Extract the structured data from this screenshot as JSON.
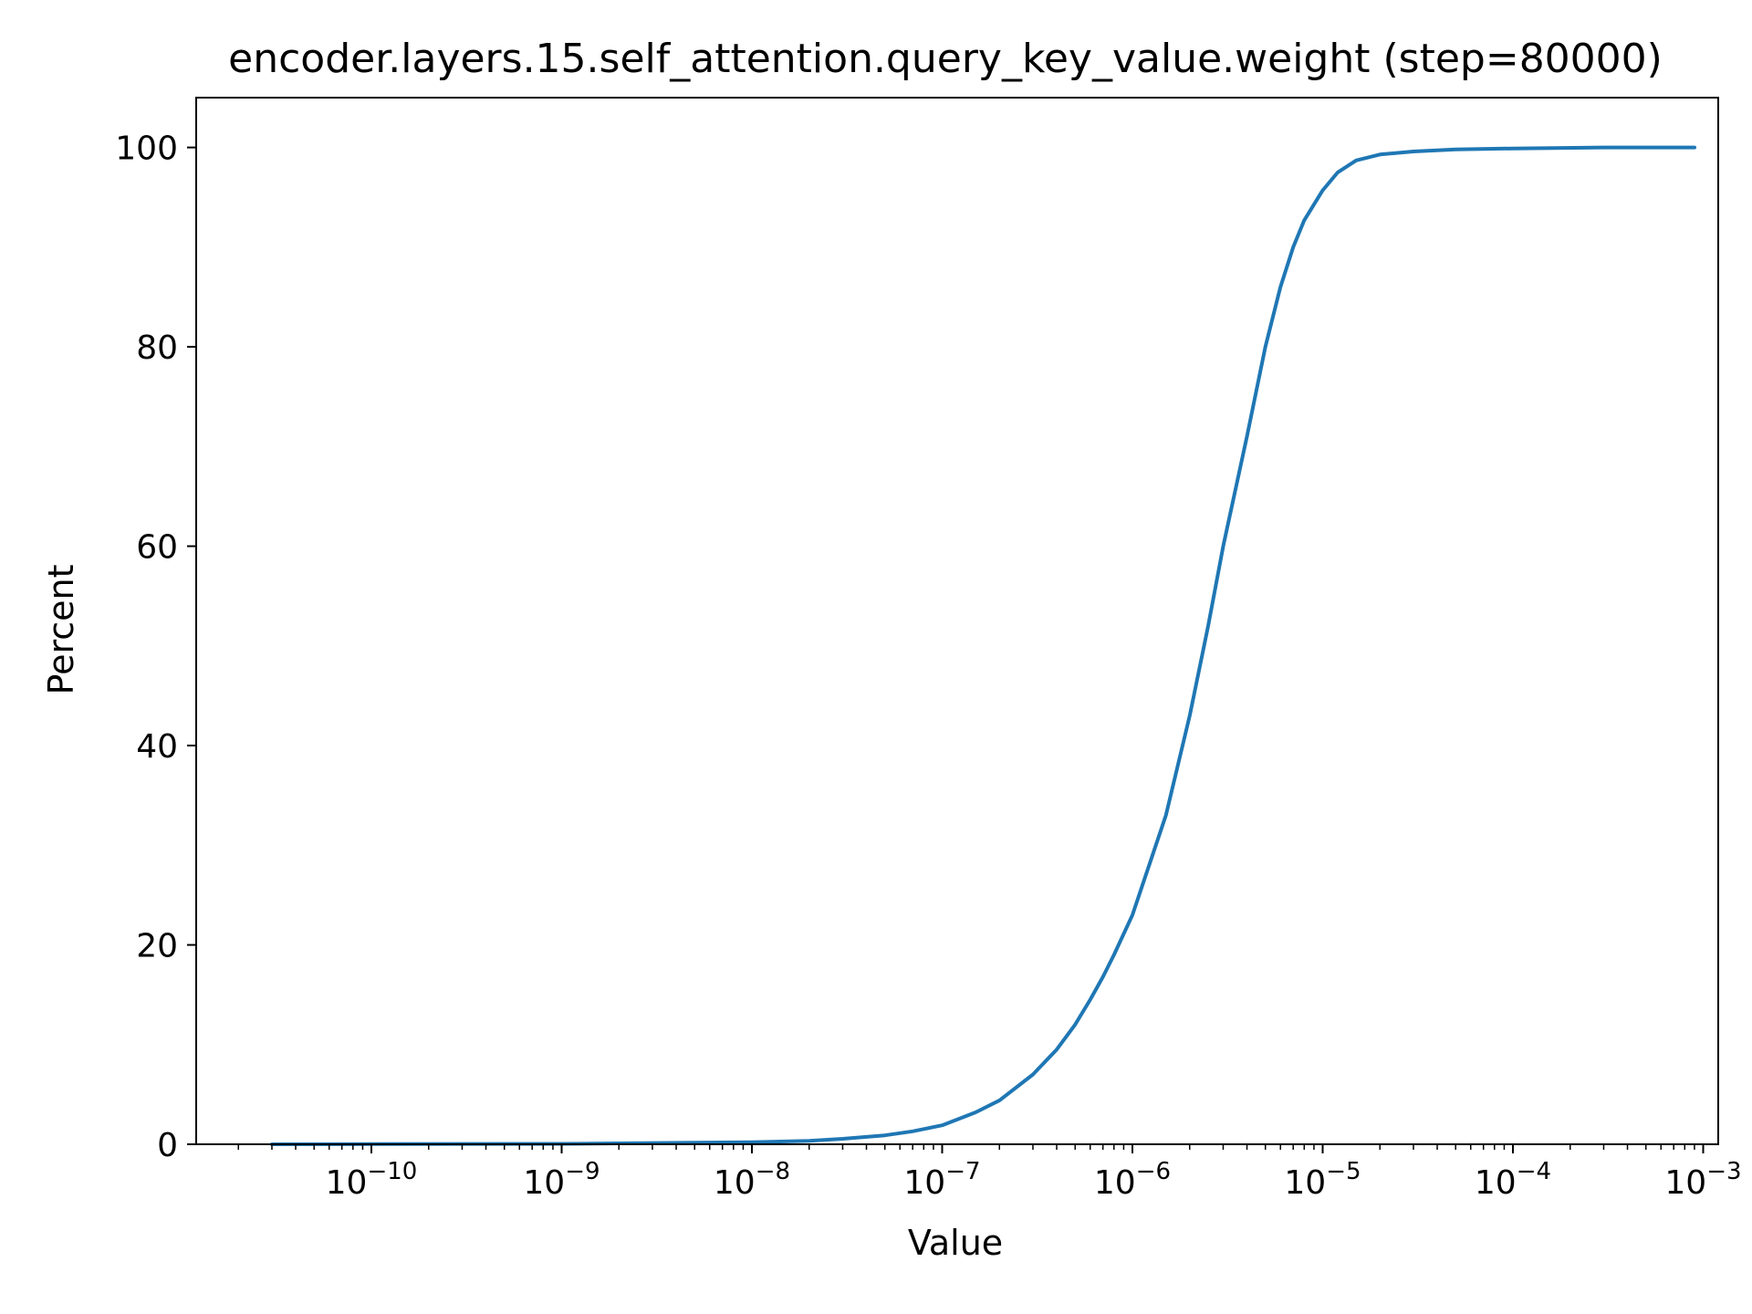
{
  "chart_data": {
    "type": "line",
    "title": "encoder.layers.15.self_attention.query_key_value.weight (step=80000)",
    "xlabel": "Value",
    "ylabel": "Percent",
    "xscale": "log",
    "xlim": [
      1.2e-11,
      0.0012
    ],
    "ylim": [
      0,
      105
    ],
    "grid": false,
    "x_ticks": [
      {
        "base": "10",
        "exp": "−10",
        "value": 1e-10
      },
      {
        "base": "10",
        "exp": "−9",
        "value": 1e-09
      },
      {
        "base": "10",
        "exp": "−8",
        "value": 1e-08
      },
      {
        "base": "10",
        "exp": "−7",
        "value": 1e-07
      },
      {
        "base": "10",
        "exp": "−6",
        "value": 1e-06
      },
      {
        "base": "10",
        "exp": "−5",
        "value": 1e-05
      },
      {
        "base": "10",
        "exp": "−4",
        "value": 0.0001
      },
      {
        "base": "10",
        "exp": "−3",
        "value": 0.001
      }
    ],
    "y_ticks": [
      0,
      20,
      40,
      60,
      80,
      100
    ],
    "series": [
      {
        "color": "#1f77b4",
        "x": [
          3e-11,
          1e-10,
          1e-09,
          1e-08,
          2e-08,
          3e-08,
          5e-08,
          7e-08,
          1e-07,
          1.5e-07,
          2e-07,
          3e-07,
          4e-07,
          5e-07,
          6e-07,
          7e-07,
          8e-07,
          1e-06,
          1.5e-06,
          2e-06,
          2.5e-06,
          3e-06,
          4e-06,
          5e-06,
          6e-06,
          7e-06,
          8e-06,
          1e-05,
          1.2e-05,
          1.5e-05,
          2e-05,
          3e-05,
          5e-05,
          0.0001,
          0.0003,
          0.0009
        ],
        "y": [
          0,
          0.02,
          0.05,
          0.2,
          0.35,
          0.55,
          0.9,
          1.3,
          1.9,
          3.2,
          4.4,
          7,
          9.5,
          12,
          14.5,
          16.8,
          19,
          23,
          33,
          43,
          52,
          60,
          71,
          80,
          86,
          90,
          92.7,
          95.7,
          97.5,
          98.7,
          99.3,
          99.6,
          99.8,
          99.9,
          100,
          100
        ]
      }
    ]
  }
}
